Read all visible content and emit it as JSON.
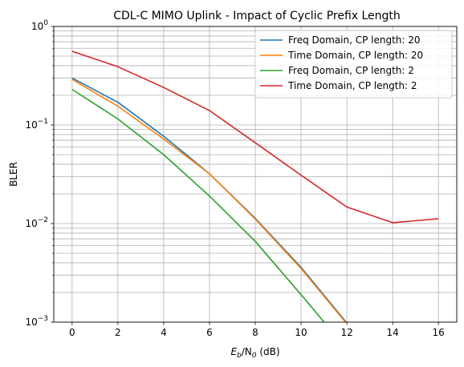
{
  "chart_data": {
    "type": "line",
    "title": "CDL-C MIMO Uplink - Impact of Cyclic Prefix Length",
    "xlabel_var": "E",
    "xlabel_sub1": "b",
    "xlabel_mid": "/N",
    "xlabel_sub2": "0",
    "xlabel_unit": " (dB)",
    "ylabel": "BLER",
    "yscale": "log",
    "ylim": [
      0.001,
      1
    ],
    "xlim": [
      -0.8,
      16.8
    ],
    "grid": true,
    "grid_minor": true,
    "legend_position": "top-right",
    "x_ticks": [
      "0",
      "2",
      "4",
      "6",
      "8",
      "10",
      "12",
      "14",
      "16"
    ],
    "y_ticks": [
      {
        "value": 0.001,
        "base": "10",
        "exp": "−3"
      },
      {
        "value": 0.01,
        "base": "10",
        "exp": "−2"
      },
      {
        "value": 0.1,
        "base": "10",
        "exp": "−1"
      },
      {
        "value": 1,
        "base": "10",
        "exp": "0"
      }
    ],
    "series": [
      {
        "name": "Freq Domain, CP length: 20",
        "color": "#1f77b4",
        "x": [
          0,
          2,
          4,
          6,
          8,
          10,
          12
        ],
        "y": [
          0.3,
          0.17,
          0.077,
          0.032,
          0.0113,
          0.0036,
          0.00098
        ]
      },
      {
        "name": "Time Domain, CP length: 20",
        "color": "#ff7f0e",
        "x": [
          0,
          2,
          4,
          6,
          8,
          10,
          12
        ],
        "y": [
          0.29,
          0.155,
          0.072,
          0.032,
          0.0111,
          0.0035,
          0.00096
        ]
      },
      {
        "name": "Freq Domain, CP length: 2",
        "color": "#2ca02c",
        "x": [
          0,
          2,
          4,
          6,
          8,
          10,
          12
        ],
        "y": [
          0.23,
          0.115,
          0.05,
          0.019,
          0.0066,
          0.0019,
          0.00053
        ]
      },
      {
        "name": "Time Domain, CP length: 2",
        "color": "#d62728",
        "x": [
          0,
          2,
          4,
          6,
          8,
          10,
          12,
          14,
          16
        ],
        "y": [
          0.56,
          0.39,
          0.24,
          0.14,
          0.066,
          0.031,
          0.0147,
          0.0102,
          0.0112
        ]
      }
    ]
  }
}
